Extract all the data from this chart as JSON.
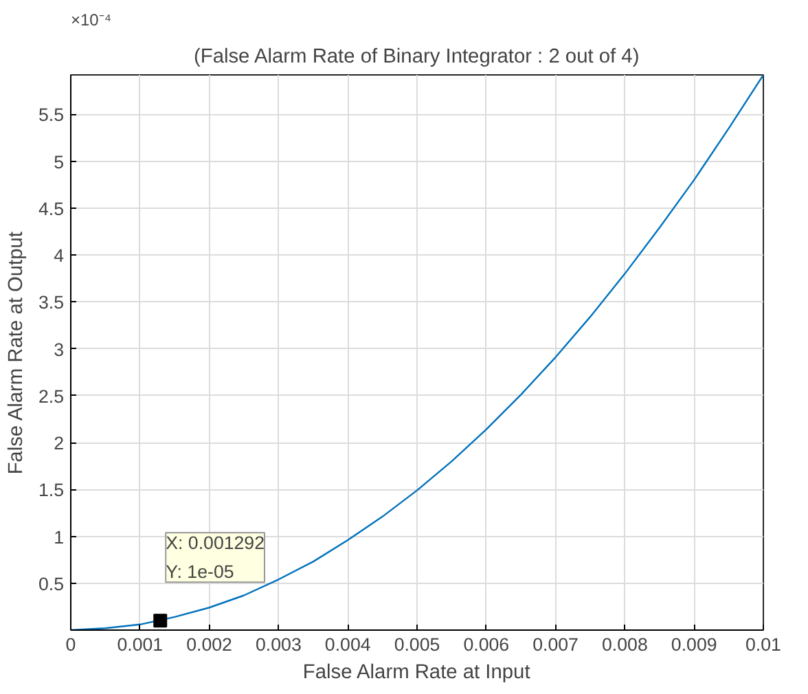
{
  "chart_data": {
    "type": "line",
    "title": "(False Alarm Rate of Binary Integrator : 2 out of 4)",
    "xlabel": "False Alarm Rate at Input",
    "ylabel": "False Alarm Rate at Output",
    "x": [
      0,
      0.0005,
      0.001,
      0.0015,
      0.002,
      0.0025,
      0.003,
      0.0035,
      0.004,
      0.0045,
      0.005,
      0.0055,
      0.006,
      0.0065,
      0.007,
      0.0075,
      0.008,
      0.0085,
      0.009,
      0.0095,
      0.01
    ],
    "series": [
      {
        "color": "#0072bd",
        "values": [
          0,
          0.02,
          0.06,
          0.14,
          0.24,
          0.37,
          0.54,
          0.73,
          0.96,
          1.21,
          1.49,
          1.8,
          2.14,
          2.51,
          2.91,
          3.34,
          3.8,
          4.29,
          4.8,
          5.35,
          5.92
        ]
      }
    ],
    "xlim": [
      0,
      0.01
    ],
    "ylim": [
      0,
      5.92
    ],
    "xticks": [
      0,
      0.001,
      0.002,
      0.003,
      0.004,
      0.005,
      0.006,
      0.007,
      0.008,
      0.009,
      0.01
    ],
    "yticks": [
      0.5,
      1,
      1.5,
      2,
      2.5,
      3,
      3.5,
      4,
      4.5,
      5,
      5.5
    ],
    "annotations": [
      "×10⁻⁴",
      {
        "text": "X: 0.001292\nY: 1e-05",
        "x": 0.001292,
        "y": 0.1
      }
    ],
    "grid": true,
    "line_style": "solid",
    "marker": "none"
  }
}
